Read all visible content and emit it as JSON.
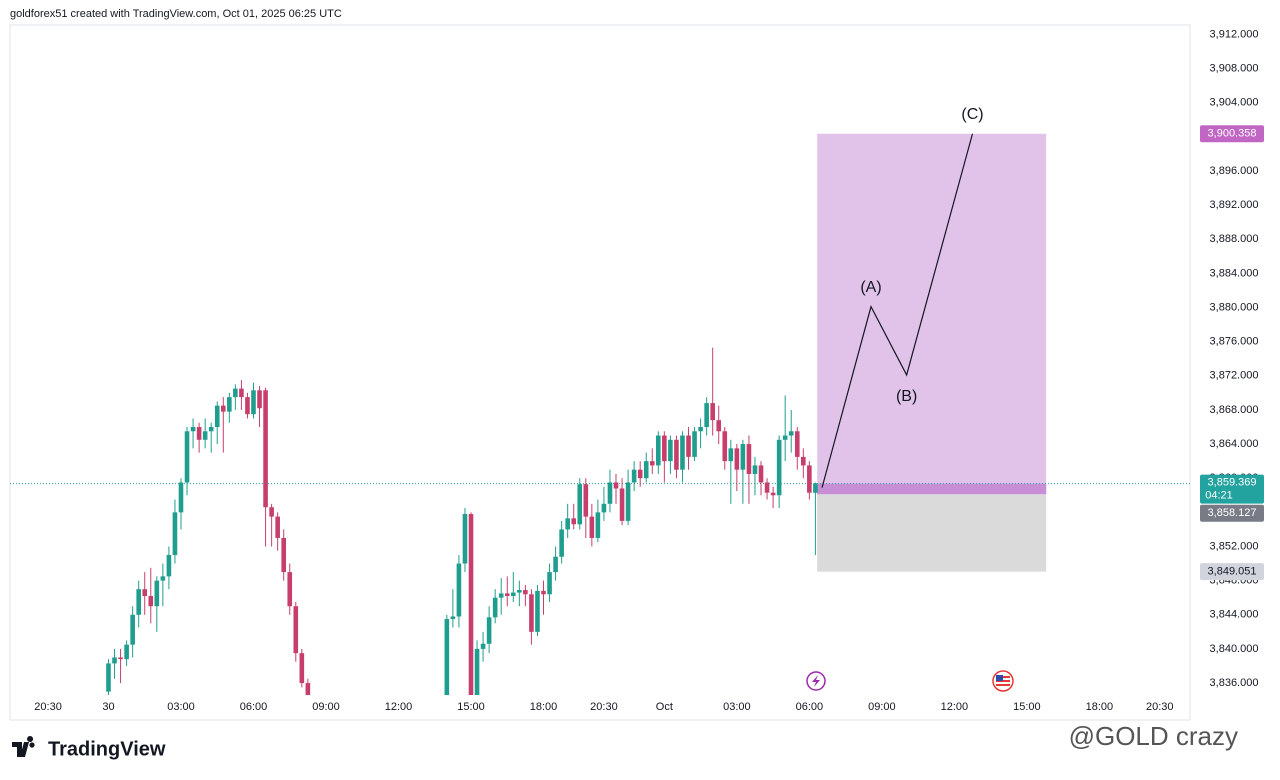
{
  "chart_data": {
    "type": "candlestick",
    "header": "goldforex51 created with TradingView.com, Oct 01, 2025 06:25 UTC",
    "brand": "TradingView",
    "watermark": "@GOLD crazy",
    "up_color": "#1f9e8f",
    "down_color": "#c73e6c",
    "grid": false,
    "xlim": [
      -6.3,
      189
    ],
    "ylim": [
      3834.6,
      3913.1
    ],
    "xticks": [
      {
        "value": 0,
        "label": "20:30"
      },
      {
        "value": 10,
        "label": "30"
      },
      {
        "value": 22,
        "label": "03:00"
      },
      {
        "value": 34,
        "label": "06:00"
      },
      {
        "value": 46,
        "label": "09:00"
      },
      {
        "value": 58,
        "label": "12:00"
      },
      {
        "value": 70,
        "label": "15:00"
      },
      {
        "value": 82,
        "label": "18:00"
      },
      {
        "value": 92,
        "label": "20:30"
      },
      {
        "value": 102,
        "label": "Oct"
      },
      {
        "value": 114,
        "label": "03:00"
      },
      {
        "value": 126,
        "label": "06:00"
      },
      {
        "value": 138,
        "label": "09:00"
      },
      {
        "value": 150,
        "label": "12:00"
      },
      {
        "value": 162,
        "label": "15:00"
      },
      {
        "value": 174,
        "label": "18:00"
      },
      {
        "value": 184,
        "label": "20:30"
      }
    ],
    "yticks": [
      {
        "value": 3836,
        "label": "3,836.000"
      },
      {
        "value": 3840,
        "label": "3,840.000"
      },
      {
        "value": 3844,
        "label": "3,844.000"
      },
      {
        "value": 3848,
        "label": "3,848.000"
      },
      {
        "value": 3852,
        "label": "3,852.000"
      },
      {
        "value": 3856,
        "label": "3,856.000"
      },
      {
        "value": 3860,
        "label": "3,860.000"
      },
      {
        "value": 3864,
        "label": "3,864.000"
      },
      {
        "value": 3868,
        "label": "3,868.000"
      },
      {
        "value": 3872,
        "label": "3,872.000"
      },
      {
        "value": 3876,
        "label": "3,876.000"
      },
      {
        "value": 3880,
        "label": "3,880.000"
      },
      {
        "value": 3884,
        "label": "3,884.000"
      },
      {
        "value": 3888,
        "label": "3,888.000"
      },
      {
        "value": 3892,
        "label": "3,892.000"
      },
      {
        "value": 3896,
        "label": "3,896.000"
      },
      {
        "value": 3900,
        "label": "3,900.000"
      },
      {
        "value": 3904,
        "label": "3,904.000"
      },
      {
        "value": 3908,
        "label": "3,908.000"
      },
      {
        "value": 3912,
        "label": "3,912.000"
      }
    ],
    "x": [
      10,
      11,
      12,
      13,
      14,
      15,
      16,
      17,
      18,
      19,
      20,
      21,
      22,
      23,
      24,
      25,
      26,
      27,
      28,
      29,
      30,
      31,
      32,
      33,
      34,
      35,
      36,
      37,
      38,
      39,
      40,
      41,
      42,
      43,
      66,
      67,
      68,
      69,
      70,
      71,
      72,
      73,
      74,
      75,
      76,
      77,
      78,
      79,
      80,
      81,
      82,
      83,
      84,
      85,
      86,
      87,
      88,
      89,
      90,
      91,
      92,
      93,
      94,
      95,
      96,
      97,
      98,
      99,
      100,
      101,
      102,
      103,
      104,
      105,
      106,
      107,
      108,
      109,
      110,
      111,
      112,
      113,
      114,
      115,
      116,
      117,
      118,
      119,
      120,
      121,
      122,
      123,
      124,
      125,
      126,
      127
    ],
    "open": [
      3835,
      3838.3,
      3839,
      3838.8,
      3840.5,
      3844,
      3847,
      3846.2,
      3845,
      3848,
      3848.5,
      3851,
      3856,
      3859.5,
      3865.5,
      3866,
      3864.5,
      3865.5,
      3866,
      3868.5,
      3867.8,
      3869.5,
      3870.5,
      3869.5,
      3867.5,
      3870.3,
      3870.3,
      3856.6,
      3855.5,
      3853,
      3849,
      3845,
      3839.5,
      3836,
      3834.5,
      3843.5,
      3843.8,
      3850,
      3855.8,
      3834.5,
      3840,
      3840.6,
      3843.7,
      3846,
      3846.5,
      3846.2,
      3846.6,
      3846.9,
      3846.4,
      3842,
      3846.8,
      3846.4,
      3849,
      3850.8,
      3854,
      3855.3,
      3854.6,
      3859.3,
      3855.5,
      3853,
      3856,
      3857,
      3859.5,
      3858.8,
      3855,
      3859.5,
      3861,
      3860,
      3862,
      3861.5,
      3865,
      3862,
      3864.5,
      3861,
      3865,
      3862.5,
      3865.5,
      3866,
      3868.8,
      3866.8,
      3865.5,
      3862,
      3863.5,
      3861,
      3864,
      3860.5,
      3861.5,
      3859.5,
      3858.3,
      3858,
      3864.5,
      3865,
      3865.5,
      3862.5,
      3861.5,
      3858.3
    ],
    "high": [
      3838.8,
      3840,
      3840,
      3841,
      3845,
      3848,
      3849,
      3849.5,
      3848.5,
      3850,
      3852,
      3857.5,
      3860,
      3866,
      3867,
      3866.5,
      3867,
      3866.5,
      3869,
      3869.5,
      3870,
      3871,
      3871.5,
      3870,
      3871.2,
      3870.8,
      3870.6,
      3857,
      3856,
      3854,
      3850,
      3845.5,
      3840,
      3836.5,
      3844,
      3847,
      3851,
      3856.5,
      3856,
      3841,
      3842,
      3845,
      3847,
      3848.3,
      3848.5,
      3849,
      3848,
      3847.5,
      3847,
      3847.5,
      3848,
      3850,
      3852,
      3855,
      3857,
      3857,
      3860,
      3860,
      3857,
      3857.5,
      3859,
      3861,
      3860.5,
      3860,
      3861,
      3862,
      3862,
      3863,
      3863.5,
      3865.5,
      3865.5,
      3865,
      3865,
      3865.5,
      3866,
      3866,
      3867,
      3869.5,
      3875.3,
      3868.5,
      3866,
      3864.5,
      3864,
      3864.5,
      3865,
      3862.5,
      3862,
      3860,
      3859,
      3865,
      3869.7,
      3868,
      3866,
      3863.5,
      3862,
      3859.5
    ],
    "low": [
      3834.5,
      3836.5,
      3836,
      3838,
      3839,
      3842.5,
      3844,
      3843,
      3842,
      3845,
      3847,
      3850,
      3854,
      3858,
      3863.5,
      3863,
      3863.5,
      3863,
      3864,
      3863,
      3866.5,
      3868,
      3868,
      3867,
      3867,
      3866,
      3852,
      3852,
      3851.5,
      3848,
      3844,
      3838.5,
      3835.5,
      3834,
      3834,
      3842.5,
      3842.5,
      3849,
      3834,
      3834,
      3838.5,
      3839.5,
      3843,
      3844,
      3845,
      3845.5,
      3845,
      3845,
      3840.5,
      3841.5,
      3844,
      3845.5,
      3848,
      3850,
      3853,
      3854,
      3854,
      3853,
      3852,
      3852.5,
      3855,
      3856,
      3857,
      3854.5,
      3854.5,
      3858.5,
      3859,
      3859.5,
      3860.5,
      3860.5,
      3859.5,
      3860.5,
      3860,
      3859.5,
      3861,
      3862,
      3863.5,
      3865,
      3865,
      3864,
      3861,
      3857,
      3858.5,
      3857,
      3857,
      3858,
      3858,
      3857.5,
      3856.5,
      3856.5,
      3862,
      3863,
      3861,
      3860,
      3857.5,
      3851
    ],
    "close": [
      3838.3,
      3839,
      3838.8,
      3840.5,
      3844,
      3847,
      3846.2,
      3845,
      3848,
      3848.5,
      3851,
      3856,
      3859.5,
      3865.5,
      3866,
      3864.5,
      3865.5,
      3866,
      3868.5,
      3867.8,
      3869.5,
      3870.5,
      3869.5,
      3867.5,
      3870.3,
      3868.2,
      3856.6,
      3855.5,
      3853,
      3849,
      3845,
      3839.5,
      3836,
      3834.5,
      3843.5,
      3843.8,
      3850,
      3855.8,
      3834.5,
      3840,
      3840.6,
      3843.7,
      3846,
      3846.5,
      3846.2,
      3846.6,
      3846.9,
      3846.4,
      3842,
      3846.8,
      3846.4,
      3849,
      3850.8,
      3854,
      3855.3,
      3854.6,
      3859.3,
      3855.5,
      3853,
      3856,
      3857,
      3859.5,
      3858.8,
      3855,
      3859.5,
      3861,
      3860,
      3862,
      3861.5,
      3865,
      3862,
      3864.5,
      3861,
      3865,
      3862.5,
      3865.5,
      3866,
      3868.8,
      3866.8,
      3865.5,
      3862,
      3863.5,
      3861,
      3864,
      3860.5,
      3861.5,
      3859.5,
      3858.3,
      3858,
      3864.5,
      3865,
      3865.5,
      3862.5,
      3861.5,
      3858.3,
      3859.4
    ],
    "current_price": {
      "value": 3859.369,
      "label": "3,859.369"
    },
    "countdown": "04:21",
    "position": {
      "x_start": 127.3,
      "x_end": 165.2,
      "profit_color": "#e1c3ea",
      "loss_color": "#dadada",
      "target": {
        "value": 3900.358,
        "label": "3,900.358"
      },
      "entry": {
        "value": 3858.127,
        "label": "3,858.127"
      },
      "stop": {
        "value": 3849.051,
        "label": "3,849.051"
      }
    },
    "wave": {
      "x": [
        128.1,
        136.2,
        142.1,
        153.0
      ],
      "y": [
        3858.9,
        3880.1,
        3872.1,
        3900.36
      ],
      "labels": [
        null,
        "(A)",
        "(B)",
        "(C)"
      ]
    }
  }
}
